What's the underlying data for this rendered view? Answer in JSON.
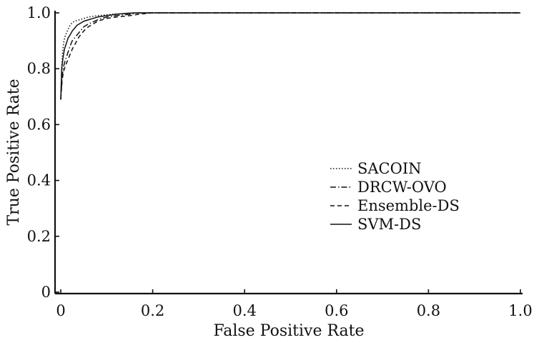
{
  "chart_data": {
    "type": "line",
    "title": "",
    "xlabel": "False Positive Rate",
    "ylabel": "True Positive Rate",
    "xlim": [
      0,
      1
    ],
    "ylim": [
      0,
      1
    ],
    "xticks": [
      "0",
      "0.2",
      "0.4",
      "0.6",
      "0.8",
      "1.0"
    ],
    "yticks": [
      "0",
      "0.2",
      "0.4",
      "0.6",
      "0.8",
      "1.0"
    ],
    "grid": false,
    "legend_position": "center-right",
    "series": [
      {
        "name": "SACOIN",
        "style": "dotted",
        "x": [
          0,
          0.002,
          0.004,
          0.007,
          0.01,
          0.013,
          0.016,
          0.02,
          0.025,
          0.03,
          0.04,
          0.05,
          0.06,
          0.08,
          0.1,
          0.12,
          0.15,
          0.17,
          0.2,
          1.0
        ],
        "y": [
          0.69,
          0.8,
          0.86,
          0.9,
          0.92,
          0.93,
          0.94,
          0.955,
          0.965,
          0.97,
          0.975,
          0.98,
          0.985,
          0.99,
          0.993,
          0.996,
          0.998,
          1.0,
          1.0,
          1.0
        ]
      },
      {
        "name": "DRCW-OVO",
        "style": "dashdot",
        "x": [
          0,
          0.003,
          0.005,
          0.008,
          0.012,
          0.016,
          0.02,
          0.025,
          0.03,
          0.035,
          0.04,
          0.05,
          0.06,
          0.08,
          0.1,
          0.12,
          0.15,
          0.17,
          0.2,
          1.0
        ],
        "y": [
          0.69,
          0.77,
          0.8,
          0.82,
          0.84,
          0.86,
          0.88,
          0.9,
          0.91,
          0.92,
          0.93,
          0.95,
          0.96,
          0.975,
          0.985,
          0.99,
          0.995,
          1.0,
          1.0,
          1.0
        ]
      },
      {
        "name": "Ensemble-DS",
        "style": "dashed",
        "x": [
          0,
          0.003,
          0.006,
          0.01,
          0.015,
          0.02,
          0.025,
          0.03,
          0.035,
          0.04,
          0.05,
          0.06,
          0.07,
          0.08,
          0.1,
          0.12,
          0.15,
          0.17,
          0.2,
          1.0
        ],
        "y": [
          0.69,
          0.76,
          0.79,
          0.81,
          0.83,
          0.85,
          0.87,
          0.885,
          0.9,
          0.915,
          0.935,
          0.95,
          0.96,
          0.97,
          0.98,
          0.985,
          0.99,
          0.995,
          1.0,
          1.0
        ]
      },
      {
        "name": "SVM-DS",
        "style": "solid",
        "x": [
          0,
          0.002,
          0.005,
          0.008,
          0.012,
          0.016,
          0.02,
          0.025,
          0.03,
          0.035,
          0.04,
          0.05,
          0.06,
          0.08,
          0.1,
          0.12,
          0.14,
          0.16,
          0.2,
          1.0
        ],
        "y": [
          0.69,
          0.8,
          0.84,
          0.87,
          0.89,
          0.91,
          0.92,
          0.935,
          0.945,
          0.955,
          0.96,
          0.97,
          0.975,
          0.985,
          0.99,
          0.995,
          0.998,
          1.0,
          1.0,
          1.0
        ]
      }
    ]
  }
}
